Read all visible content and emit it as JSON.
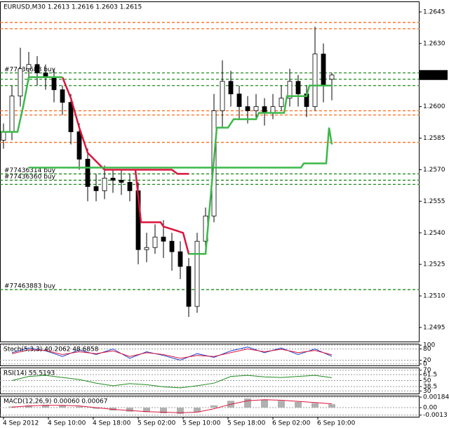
{
  "chart_data": [
    {
      "type": "candlestick",
      "title": "EURUSD,M30  1.2613 1.2616 1.2603 1.2615",
      "xlim": [
        -1.25,
        148.25
      ],
      "ylim": [
        1.24883,
        1.265
      ],
      "yticks": [
        1.2645,
        {
          "value": 1.263,
          "label": "1.2630"
        },
        1.2615,
        {
          "value": 1.26,
          "label": "1.2600"
        },
        1.2585,
        {
          "value": 1.257,
          "label": "1.2570"
        },
        1.2555,
        {
          "value": 1.254,
          "label": "1.2540"
        },
        1.2525,
        {
          "value": 1.251,
          "label": "1.2510"
        },
        1.2495
      ],
      "x": [
        0,
        3,
        6,
        9,
        12,
        15,
        18,
        21,
        24,
        27,
        30,
        33,
        36,
        39,
        42,
        45,
        48,
        51,
        54,
        57,
        60,
        63,
        66,
        69,
        72,
        75,
        78,
        81,
        84,
        87,
        90,
        93,
        96,
        99,
        102,
        105,
        108,
        111,
        114,
        117
      ],
      "open": [
        1.2584,
        1.2588,
        1.2605,
        1.2618,
        1.262,
        1.2616,
        1.2614,
        1.2608,
        1.2602,
        1.2588,
        1.2575,
        1.2562,
        1.256,
        1.2566,
        1.2565,
        1.2564,
        1.256,
        1.2532,
        1.2533,
        1.2538,
        1.2536,
        1.2531,
        1.2524,
        1.2505,
        1.2536,
        1.2548,
        1.2598,
        1.2612,
        1.2606,
        1.26,
        1.2598,
        1.26,
        1.2597,
        1.26,
        1.2604,
        1.2612,
        1.2606,
        1.26,
        1.2625,
        1.2613
      ],
      "high": [
        1.2592,
        1.261,
        1.2628,
        1.2626,
        1.2624,
        1.262,
        1.2618,
        1.261,
        1.2606,
        1.2592,
        1.258,
        1.2568,
        1.2572,
        1.257,
        1.257,
        1.2568,
        1.2564,
        1.254,
        1.2544,
        1.2546,
        1.254,
        1.2536,
        1.2528,
        1.254,
        1.2552,
        1.2606,
        1.2622,
        1.2617,
        1.261,
        1.2605,
        1.2606,
        1.2604,
        1.2606,
        1.261,
        1.2618,
        1.2615,
        1.261,
        1.2638,
        1.263,
        1.2616
      ],
      "low": [
        1.258,
        1.2584,
        1.26,
        1.2612,
        1.261,
        1.2608,
        1.2602,
        1.2596,
        1.2582,
        1.257,
        1.2555,
        1.2555,
        1.2556,
        1.2559,
        1.2558,
        1.2555,
        1.2525,
        1.2526,
        1.253,
        1.2528,
        1.2522,
        1.2518,
        1.25,
        1.2502,
        1.2532,
        1.2545,
        1.259,
        1.26,
        1.2594,
        1.2592,
        1.2594,
        1.2591,
        1.2594,
        1.2598,
        1.26,
        1.26,
        1.2595,
        1.2598,
        1.2602,
        1.2603
      ],
      "close": [
        1.2588,
        1.2605,
        1.2618,
        1.262,
        1.2616,
        1.2614,
        1.2608,
        1.2602,
        1.2588,
        1.2575,
        1.2562,
        1.256,
        1.2566,
        1.2565,
        1.2564,
        1.256,
        1.2532,
        1.2533,
        1.2538,
        1.2536,
        1.2531,
        1.2524,
        1.2505,
        1.2536,
        1.2548,
        1.2598,
        1.2612,
        1.2606,
        1.26,
        1.2598,
        1.26,
        1.2597,
        1.26,
        1.2604,
        1.2612,
        1.2606,
        1.26,
        1.2625,
        1.261,
        1.2615
      ],
      "series": [
        {
          "color": "#dc143c",
          "style": "line",
          "x": [
            21,
            24,
            27,
            30,
            36,
            60,
            62,
            66
          ],
          "values": [
            1.2614,
            1.2604,
            1.259,
            1.2578,
            1.257,
            1.257,
            1.2568,
            1.2568
          ]
        },
        {
          "color": "#dc143c",
          "style": "line",
          "x": [
            47,
            49,
            56,
            57,
            64,
            66,
            72
          ],
          "values": [
            1.257,
            1.2545,
            1.2545,
            1.2543,
            1.254,
            1.253,
            1.253
          ]
        },
        {
          "color": "#3cb84a",
          "style": "line",
          "x": [
            -1,
            5,
            7,
            9,
            21
          ],
          "values": [
            1.2588,
            1.2588,
            1.26,
            1.2614,
            1.2614
          ]
        },
        {
          "color": "#3cb84a",
          "style": "line",
          "x": [
            9,
            106,
            107,
            115,
            116,
            117
          ],
          "values": [
            1.2571,
            1.2571,
            1.2573,
            1.2573,
            1.259,
            1.2582
          ]
        },
        {
          "color": "#3cb84a",
          "style": "line",
          "x": [
            66,
            72,
            74,
            76,
            80,
            82,
            90,
            91,
            100,
            101,
            108,
            109,
            117
          ],
          "values": [
            1.253,
            1.253,
            1.256,
            1.259,
            1.259,
            1.2594,
            1.2594,
            1.2597,
            1.2597,
            1.2605,
            1.2605,
            1.261,
            1.261
          ]
        }
      ],
      "levels": [
        {
          "value": 1.264,
          "color": "#ff6a1a"
        },
        {
          "value": 1.2637,
          "color": "#ff6a1a"
        },
        {
          "value": 1.2616,
          "color": "#1e8c1e"
        },
        {
          "value": 1.2613,
          "color": "#1e8c1e"
        },
        {
          "value": 1.261,
          "color": "#1e8c1e"
        },
        {
          "value": 1.2598,
          "color": "#ff6a1a"
        },
        {
          "value": 1.2596,
          "color": "#ff6a1a"
        },
        {
          "value": 1.2583,
          "color": "#ff6a1a"
        },
        {
          "value": 1.2568,
          "color": "#1e8c1e"
        },
        {
          "value": 1.2565,
          "color": "#1e8c1e"
        },
        {
          "value": 1.2563,
          "color": "#1e8c1e"
        },
        {
          "value": 1.2513,
          "color": "#1e8c1e"
        }
      ],
      "order_labels": [
        {
          "text": "#77436688 buy",
          "value": 1.2616
        },
        {
          "text": "#77436314 buy",
          "value": 1.2568
        },
        {
          "text": "#77436360 buy",
          "value": 1.2565
        },
        {
          "text": "#77463883 buy",
          "value": 1.2513
        }
      ]
    },
    {
      "type": "line",
      "title": "Stoch(5,3,3) 40.2062 48.6858",
      "xlim": [
        -1.25,
        148.25
      ],
      "ylim": [
        -8,
        108
      ],
      "yticks": [
        100,
        80,
        20,
        0
      ],
      "series": [
        {
          "color": "#1f3fd0",
          "style": "line",
          "x": [
            3,
            9,
            15,
            21,
            27,
            33,
            39,
            45,
            51,
            57,
            63,
            69,
            75,
            81,
            87,
            93,
            99,
            105,
            111,
            117
          ],
          "values": [
            60,
            85,
            70,
            40,
            75,
            50,
            80,
            30,
            65,
            45,
            20,
            55,
            35,
            70,
            90,
            60,
            85,
            50,
            80,
            40.2062
          ]
        },
        {
          "color": "#dc143c",
          "style": "line",
          "x": [
            3,
            9,
            15,
            21,
            27,
            33,
            39,
            45,
            51,
            57,
            63,
            69,
            75,
            81,
            87,
            93,
            99,
            105,
            111,
            117
          ],
          "values": [
            55,
            75,
            72,
            50,
            65,
            55,
            70,
            40,
            60,
            50,
            30,
            45,
            40,
            60,
            80,
            65,
            78,
            60,
            72,
            48.6858
          ]
        }
      ]
    },
    {
      "type": "line",
      "title": "RSI(14) 55.5193",
      "xlim": [
        -1.25,
        148.25
      ],
      "ylim": [
        25,
        75
      ],
      "yticks": [
        70,
        61.5,
        50,
        38.5,
        30
      ],
      "series": [
        {
          "color": "#1e8c1e",
          "style": "line",
          "x": [
            3,
            9,
            15,
            21,
            27,
            33,
            39,
            45,
            51,
            57,
            63,
            69,
            75,
            81,
            87,
            93,
            99,
            105,
            111,
            117
          ],
          "values": [
            50,
            58,
            60,
            56,
            52,
            45,
            40,
            44,
            42,
            38,
            36,
            40,
            45,
            58,
            60,
            57,
            56,
            58,
            60,
            55.5193
          ]
        }
      ]
    },
    {
      "type": "line",
      "title": "MACD(12,26,9) 0.00060 0.00067",
      "xlim": [
        -1.25,
        148.25
      ],
      "ylim": [
        -0.0016,
        0.0021
      ],
      "yticks": [
        0.00184,
        {
          "value": 0,
          "label": "0.00"
        },
        -0.0013
      ],
      "xticks": [
        {
          "value": 0,
          "label": "4 Sep 2012"
        },
        {
          "value": 16,
          "label": "4 Sep 10:00"
        },
        {
          "value": 32,
          "label": "4 Sep 18:00"
        },
        {
          "value": 48,
          "label": "5 Sep 02:00"
        },
        {
          "value": 64,
          "label": "5 Sep 10:00"
        },
        {
          "value": 80,
          "label": "5 Sep 18:00"
        },
        {
          "value": 96,
          "label": "6 Sep 02:00"
        },
        {
          "value": 112,
          "label": "6 Sep 10:00"
        }
      ],
      "series": [
        {
          "color": "#b0b0b0",
          "style": "bar",
          "x": [
            3,
            9,
            15,
            21,
            27,
            33,
            39,
            45,
            51,
            57,
            63,
            69,
            75,
            81,
            87,
            93,
            99,
            105,
            111,
            117
          ],
          "values": [
            0.0002,
            0.0004,
            0.0005,
            0.0004,
            0.0002,
            -0.0002,
            -0.0005,
            -0.0007,
            -0.0008,
            -0.001,
            -0.0011,
            -0.0008,
            0.0004,
            0.0012,
            0.0016,
            0.0014,
            0.0012,
            0.001,
            0.0008,
            0.0006
          ]
        },
        {
          "color": "#dc143c",
          "style": "line",
          "x": [
            3,
            9,
            15,
            21,
            27,
            33,
            39,
            45,
            51,
            57,
            63,
            69,
            75,
            81,
            87,
            93,
            99,
            105,
            111,
            117
          ],
          "values": [
            0.0001,
            0.0003,
            0.0004,
            0.0004,
            0.0003,
            0,
            -0.0003,
            -0.0005,
            -0.0007,
            -0.0008,
            -0.0009,
            -0.0008,
            -0.0002,
            0.0006,
            0.0012,
            0.0014,
            0.0013,
            0.0011,
            0.0009,
            0.00067
          ]
        }
      ]
    }
  ]
}
